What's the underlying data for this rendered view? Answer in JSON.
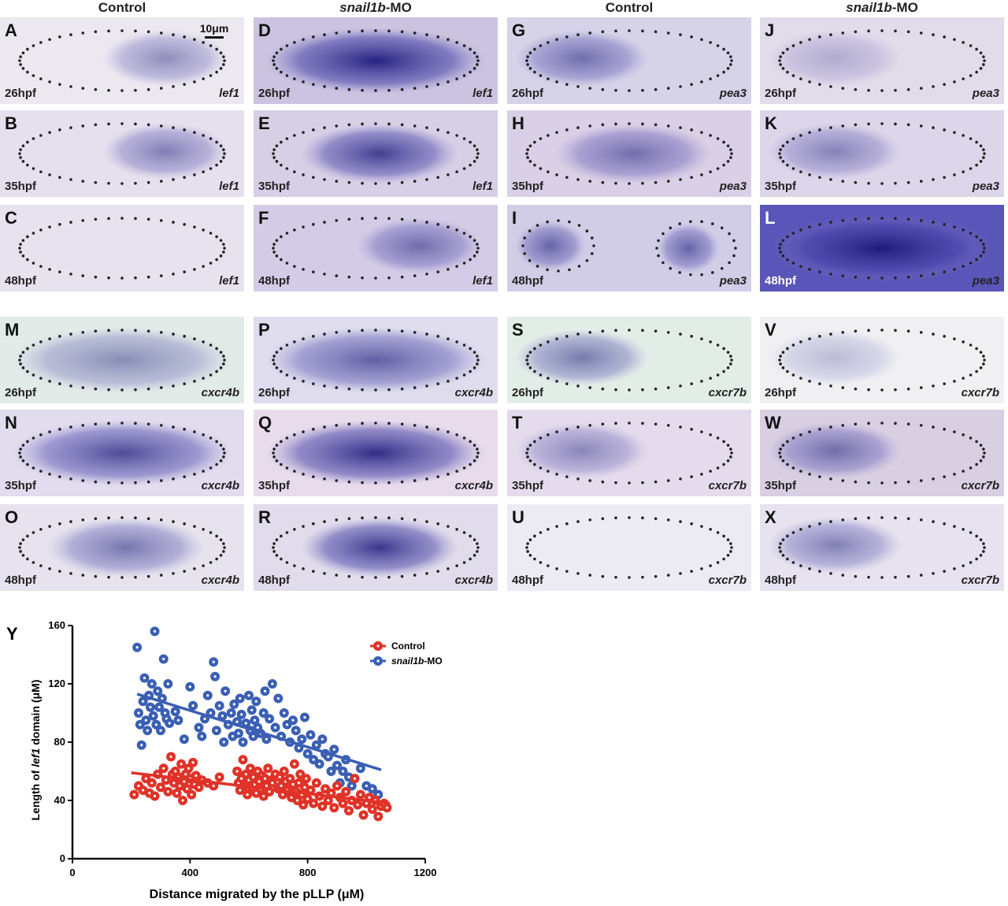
{
  "columns": [
    {
      "prefix": "Control",
      "italic": "",
      "suffix": ""
    },
    {
      "prefix": "",
      "italic": "snail1b",
      "suffix": "-MO"
    },
    {
      "prefix": "Control",
      "italic": "",
      "suffix": ""
    },
    {
      "prefix": "",
      "italic": "snail1b",
      "suffix": "-MO"
    }
  ],
  "scale_bar": {
    "label": "10μm"
  },
  "panels": [
    {
      "label": "A",
      "stage": "26hpf",
      "gene": "lef1",
      "stain": 0.45,
      "domain": "right",
      "bg": "#ece8f0"
    },
    {
      "label": "B",
      "stage": "35hpf",
      "gene": "lef1",
      "stain": 0.5,
      "domain": "right",
      "bg": "#e6e0ee"
    },
    {
      "label": "C",
      "stage": "48hpf",
      "gene": "lef1",
      "stain": 0.08,
      "domain": "none",
      "bg": "#e8e2ef"
    },
    {
      "label": "D",
      "stage": "26hpf",
      "gene": "lef1",
      "stain": 0.95,
      "domain": "full",
      "bg": "#cbc3e0"
    },
    {
      "label": "E",
      "stage": "35hpf",
      "gene": "lef1",
      "stain": 0.8,
      "domain": "center",
      "bg": "#d7cfe6"
    },
    {
      "label": "F",
      "stage": "48hpf",
      "gene": "lef1",
      "stain": 0.55,
      "domain": "right",
      "bg": "#d4cce6"
    },
    {
      "label": "G",
      "stage": "26hpf",
      "gene": "pea3",
      "stain": 0.55,
      "domain": "left",
      "bg": "#d6d2e8"
    },
    {
      "label": "H",
      "stage": "35hpf",
      "gene": "pea3",
      "stain": 0.55,
      "domain": "center",
      "bg": "#d9cfe6"
    },
    {
      "label": "I",
      "stage": "48hpf",
      "gene": "pea3",
      "stain": 0.6,
      "domain": "split",
      "bg": "#d2cde6"
    },
    {
      "label": "J",
      "stage": "26hpf",
      "gene": "pea3",
      "stain": 0.25,
      "domain": "left",
      "bg": "#e1dbea"
    },
    {
      "label": "K",
      "stage": "35hpf",
      "gene": "pea3",
      "stain": 0.45,
      "domain": "left",
      "bg": "#ddd6ea"
    },
    {
      "label": "L",
      "stage": "48hpf",
      "gene": "pea3",
      "stain": 1.0,
      "domain": "full",
      "bg": "#5a55b8",
      "dark": true
    },
    {
      "label": "M",
      "stage": "26hpf",
      "gene": "cxcr4b",
      "stain": 0.45,
      "domain": "full",
      "bg": "#e2ebe8"
    },
    {
      "label": "N",
      "stage": "35hpf",
      "gene": "cxcr4b",
      "stain": 0.75,
      "domain": "full",
      "bg": "#e2dcef"
    },
    {
      "label": "O",
      "stage": "48hpf",
      "gene": "cxcr4b",
      "stain": 0.55,
      "domain": "center",
      "bg": "#e6e3ee"
    },
    {
      "label": "P",
      "stage": "26hpf",
      "gene": "cxcr4b",
      "stain": 0.65,
      "domain": "full",
      "bg": "#dfdcee"
    },
    {
      "label": "Q",
      "stage": "35hpf",
      "gene": "cxcr4b",
      "stain": 0.9,
      "domain": "full",
      "bg": "#e8dcec"
    },
    {
      "label": "R",
      "stage": "48hpf",
      "gene": "cxcr4b",
      "stain": 0.85,
      "domain": "center",
      "bg": "#e1dceb"
    },
    {
      "label": "S",
      "stage": "26hpf",
      "gene": "cxcr7b",
      "stain": 0.55,
      "domain": "left",
      "bg": "#e3ede8"
    },
    {
      "label": "T",
      "stage": "35hpf",
      "gene": "cxcr7b",
      "stain": 0.45,
      "domain": "left",
      "bg": "#e4dcec"
    },
    {
      "label": "U",
      "stage": "48hpf",
      "gene": "cxcr7b",
      "stain": 0.02,
      "domain": "none",
      "bg": "#eceaf3"
    },
    {
      "label": "V",
      "stage": "26hpf",
      "gene": "cxcr7b",
      "stain": 0.25,
      "domain": "left",
      "bg": "#f0f0f3"
    },
    {
      "label": "W",
      "stage": "35hpf",
      "gene": "cxcr7b",
      "stain": 0.55,
      "domain": "left",
      "bg": "#d8cfe3"
    },
    {
      "label": "X",
      "stage": "48hpf",
      "gene": "cxcr7b",
      "stain": 0.5,
      "domain": "left",
      "bg": "#e6e2ef"
    }
  ],
  "chart_data": {
    "panel_label": "Y",
    "type": "scatter",
    "xlabel": "Distance migrated by the pLLP (μM)",
    "ylabel_prefix": "Length of ",
    "ylabel_italic": "lef1",
    "ylabel_suffix": " domain (μM)",
    "xlim": [
      0,
      1200
    ],
    "ylim": [
      0,
      160
    ],
    "xticks": [
      0,
      400,
      800,
      1200
    ],
    "yticks": [
      0,
      40,
      80,
      120,
      160
    ],
    "legend_placement": "top-right",
    "series": [
      {
        "name": "Control",
        "color": "#e03228",
        "fit": [
          [
            200,
            59
          ],
          [
            1080,
            38
          ]
        ],
        "points": [
          [
            210,
            44
          ],
          [
            225,
            50
          ],
          [
            240,
            47
          ],
          [
            250,
            55
          ],
          [
            262,
            45
          ],
          [
            270,
            52
          ],
          [
            280,
            43
          ],
          [
            290,
            58
          ],
          [
            300,
            49
          ],
          [
            310,
            62
          ],
          [
            318,
            54
          ],
          [
            325,
            46
          ],
          [
            335,
            70
          ],
          [
            340,
            58
          ],
          [
            345,
            52
          ],
          [
            350,
            60
          ],
          [
            355,
            45
          ],
          [
            360,
            56
          ],
          [
            365,
            50
          ],
          [
            370,
            65
          ],
          [
            375,
            40
          ],
          [
            380,
            53
          ],
          [
            385,
            58
          ],
          [
            390,
            48
          ],
          [
            395,
            62
          ],
          [
            400,
            55
          ],
          [
            405,
            44
          ],
          [
            410,
            66
          ],
          [
            415,
            51
          ],
          [
            420,
            57
          ],
          [
            430,
            49
          ],
          [
            440,
            54
          ],
          [
            460,
            52
          ],
          [
            480,
            50
          ],
          [
            500,
            56
          ],
          [
            560,
            60
          ],
          [
            565,
            52
          ],
          [
            570,
            47
          ],
          [
            575,
            55
          ],
          [
            580,
            68
          ],
          [
            585,
            50
          ],
          [
            590,
            58
          ],
          [
            595,
            44
          ],
          [
            600,
            54
          ],
          [
            605,
            62
          ],
          [
            610,
            49
          ],
          [
            615,
            56
          ],
          [
            620,
            51
          ],
          [
            625,
            45
          ],
          [
            630,
            60
          ],
          [
            635,
            53
          ],
          [
            640,
            48
          ],
          [
            645,
            57
          ],
          [
            650,
            43
          ],
          [
            655,
            55
          ],
          [
            660,
            50
          ],
          [
            665,
            62
          ],
          [
            670,
            46
          ],
          [
            675,
            54
          ],
          [
            680,
            52
          ],
          [
            690,
            58
          ],
          [
            700,
            48
          ],
          [
            705,
            56
          ],
          [
            710,
            50
          ],
          [
            715,
            44
          ],
          [
            720,
            60
          ],
          [
            725,
            53
          ],
          [
            730,
            47
          ],
          [
            740,
            55
          ],
          [
            745,
            42
          ],
          [
            750,
            51
          ],
          [
            755,
            65
          ],
          [
            760,
            46
          ],
          [
            765,
            40
          ],
          [
            770,
            52
          ],
          [
            775,
            58
          ],
          [
            780,
            44
          ],
          [
            785,
            37
          ],
          [
            790,
            49
          ],
          [
            795,
            55
          ],
          [
            800,
            41
          ],
          [
            810,
            47
          ],
          [
            820,
            38
          ],
          [
            830,
            52
          ],
          [
            840,
            43
          ],
          [
            850,
            36
          ],
          [
            860,
            48
          ],
          [
            870,
            40
          ],
          [
            880,
            45
          ],
          [
            890,
            35
          ],
          [
            900,
            50
          ],
          [
            910,
            42
          ],
          [
            920,
            38
          ],
          [
            930,
            46
          ],
          [
            940,
            33
          ],
          [
            950,
            40
          ],
          [
            960,
            55
          ],
          [
            970,
            37
          ],
          [
            980,
            44
          ],
          [
            990,
            30
          ],
          [
            1000,
            38
          ],
          [
            1010,
            42
          ],
          [
            1020,
            34
          ],
          [
            1030,
            40
          ],
          [
            1040,
            29
          ],
          [
            1050,
            36
          ],
          [
            1060,
            38
          ],
          [
            1070,
            35
          ]
        ]
      },
      {
        "name": "snail1b-MO",
        "color": "#3a5fb4",
        "fit": [
          [
            220,
            113
          ],
          [
            1050,
            61
          ]
        ],
        "points": [
          [
            220,
            145
          ],
          [
            225,
            100
          ],
          [
            230,
            92
          ],
          [
            235,
            78
          ],
          [
            240,
            108
          ],
          [
            245,
            124
          ],
          [
            250,
            95
          ],
          [
            255,
            88
          ],
          [
            260,
            112
          ],
          [
            265,
            104
          ],
          [
            270,
            120
          ],
          [
            275,
            98
          ],
          [
            280,
            156
          ],
          [
            285,
            92
          ],
          [
            290,
            115
          ],
          [
            295,
            104
          ],
          [
            300,
            88
          ],
          [
            305,
            110
          ],
          [
            310,
            137
          ],
          [
            315,
            100
          ],
          [
            320,
            96
          ],
          [
            325,
            120
          ],
          [
            330,
            93
          ],
          [
            350,
            101
          ],
          [
            360,
            95
          ],
          [
            380,
            82
          ],
          [
            400,
            118
          ],
          [
            410,
            105
          ],
          [
            430,
            90
          ],
          [
            440,
            84
          ],
          [
            450,
            96
          ],
          [
            460,
            112
          ],
          [
            470,
            100
          ],
          [
            480,
            135
          ],
          [
            485,
            125
          ],
          [
            490,
            88
          ],
          [
            500,
            105
          ],
          [
            510,
            98
          ],
          [
            515,
            80
          ],
          [
            520,
            115
          ],
          [
            530,
            92
          ],
          [
            540,
            100
          ],
          [
            545,
            84
          ],
          [
            550,
            106
          ],
          [
            560,
            94
          ],
          [
            565,
            86
          ],
          [
            570,
            110
          ],
          [
            575,
            99
          ],
          [
            580,
            80
          ],
          [
            590,
            93
          ],
          [
            600,
            112
          ],
          [
            605,
            88
          ],
          [
            610,
            102
          ],
          [
            615,
            84
          ],
          [
            620,
            95
          ],
          [
            625,
            108
          ],
          [
            630,
            90
          ],
          [
            640,
            86
          ],
          [
            650,
            100
          ],
          [
            655,
            115
          ],
          [
            660,
            82
          ],
          [
            670,
            96
          ],
          [
            680,
            120
          ],
          [
            690,
            90
          ],
          [
            700,
            110
          ],
          [
            710,
            84
          ],
          [
            720,
            100
          ],
          [
            730,
            92
          ],
          [
            740,
            80
          ],
          [
            750,
            95
          ],
          [
            760,
            88
          ],
          [
            770,
            76
          ],
          [
            780,
            82
          ],
          [
            790,
            97
          ],
          [
            800,
            72
          ],
          [
            810,
            85
          ],
          [
            820,
            68
          ],
          [
            830,
            78
          ],
          [
            840,
            65
          ],
          [
            850,
            82
          ],
          [
            860,
            72
          ],
          [
            870,
            70
          ],
          [
            880,
            60
          ],
          [
            890,
            75
          ],
          [
            900,
            64
          ],
          [
            910,
            52
          ],
          [
            920,
            60
          ],
          [
            930,
            68
          ],
          [
            940,
            56
          ],
          [
            950,
            50
          ],
          [
            960,
            55
          ],
          [
            980,
            62
          ],
          [
            1000,
            50
          ],
          [
            1020,
            48
          ],
          [
            1040,
            44
          ]
        ]
      }
    ]
  }
}
